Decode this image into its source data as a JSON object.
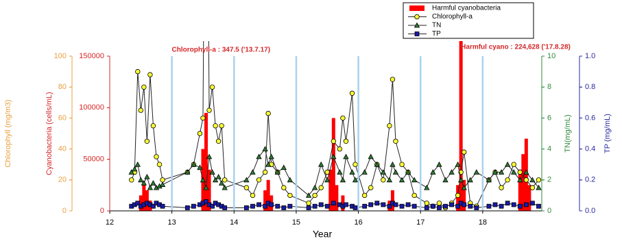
{
  "chart_data": {
    "type": "combo",
    "x_label": "Year",
    "xlim": [
      12,
      18.95
    ],
    "xticks": [
      12,
      13,
      14,
      15,
      16,
      17,
      18
    ],
    "grid": true,
    "grid_color": "#a9d2f0",
    "annotations": [
      {
        "text": "Chlorophyll-a : 347.5 ('13.7.17)",
        "x": 13.55,
        "color": "#d62728"
      },
      {
        "text": "Harmful cyano : 224,628 ('17.8.28)",
        "x": 17.65,
        "color": "#d62728"
      }
    ],
    "axes": [
      {
        "label": "Chlorophyll (mg/m3)",
        "color": "#e8a040",
        "lim": [
          0,
          100
        ],
        "ticks": [
          0,
          20,
          40,
          60,
          80,
          100
        ]
      },
      {
        "label": "Cyanobacteria (cells/mL)",
        "color": "#d62728",
        "lim": [
          0,
          150000
        ],
        "ticks": [
          0,
          50000,
          100000,
          150000
        ]
      },
      {
        "label": "TN(mg/mL)",
        "color": "#2e8b3a",
        "lim": [
          0,
          10
        ],
        "ticks": [
          0,
          2,
          4,
          6,
          8,
          10
        ]
      },
      {
        "label": "TP (mg/mL)",
        "color": "#2a2aa0",
        "lim": [
          0,
          1
        ],
        "ticks": [
          {
            "value": 0,
            "label": "0.0"
          },
          0.2,
          0.4,
          0.6,
          0.8,
          {
            "value": 1,
            "label": "1.0"
          }
        ]
      }
    ],
    "x": [
      12.35,
      12.4,
      12.45,
      12.5,
      12.55,
      12.6,
      12.65,
      12.7,
      12.75,
      12.8,
      12.85,
      13.25,
      13.35,
      13.45,
      13.5,
      13.55,
      13.6,
      13.65,
      13.7,
      13.75,
      13.8,
      13.85,
      14.2,
      14.3,
      14.4,
      14.5,
      14.55,
      14.6,
      14.7,
      14.8,
      14.9,
      15.2,
      15.3,
      15.4,
      15.5,
      15.6,
      15.7,
      15.75,
      15.8,
      15.9,
      15.95,
      16.1,
      16.2,
      16.3,
      16.4,
      16.5,
      16.55,
      16.6,
      16.7,
      16.8,
      16.9,
      17.1,
      17.2,
      17.3,
      17.4,
      17.5,
      17.6,
      17.65,
      17.7,
      17.8,
      17.9,
      18.1,
      18.2,
      18.3,
      18.4,
      18.5,
      18.6,
      18.7,
      18.8,
      18.9
    ],
    "series": [
      {
        "name": "Harmful cyanobacteria",
        "kind": "bar",
        "axis": 1,
        "color": "#ff0000",
        "x": [
          12.5,
          12.55,
          12.6,
          12.65,
          13.5,
          13.55,
          13.6,
          14.5,
          14.55,
          14.6,
          15.55,
          15.6,
          15.65,
          15.75,
          16.5,
          16.55,
          17.6,
          17.65,
          17.7,
          18.6,
          18.65,
          18.7,
          18.75
        ],
        "values": [
          15000,
          25000,
          20000,
          10000,
          60000,
          95000,
          40000,
          20000,
          30000,
          15000,
          40000,
          90000,
          25000,
          15000,
          10000,
          20000,
          25000,
          224628,
          30000,
          40000,
          55000,
          70000,
          25000
        ]
      },
      {
        "name": "Chlorophyll-a",
        "kind": "line",
        "marker": "circle",
        "axis": 0,
        "color": "#ffff33",
        "values": [
          20,
          25,
          90,
          65,
          80,
          45,
          88,
          55,
          35,
          30,
          20,
          25,
          30,
          50,
          60,
          347.5,
          65,
          80,
          55,
          45,
          55,
          20,
          15,
          10,
          20,
          25,
          63,
          30,
          25,
          15,
          10,
          5,
          10,
          15,
          25,
          45,
          40,
          60,
          45,
          76,
          30,
          10,
          15,
          30,
          20,
          55,
          85,
          45,
          30,
          25,
          10,
          5,
          3,
          5,
          2,
          5,
          10,
          25,
          38,
          5,
          3,
          20,
          25,
          15,
          20,
          30,
          25,
          20,
          15,
          20
        ]
      },
      {
        "name": "TN",
        "kind": "line",
        "marker": "triangle",
        "axis": 2,
        "color": "#2e7d32",
        "values": [
          2.5,
          2.7,
          3,
          2,
          1.8,
          2.2,
          1.5,
          1.8,
          1.5,
          1.6,
          1.7,
          2.5,
          3,
          2.8,
          2,
          1.5,
          3.5,
          2.5,
          2,
          2.2,
          1.8,
          1.5,
          2,
          2.5,
          3.5,
          4,
          3,
          3.5,
          2.5,
          2.8,
          2,
          1,
          1.5,
          3,
          2,
          3.5,
          2.5,
          2,
          3.5,
          2.5,
          2,
          2.5,
          3.5,
          3,
          2.5,
          2,
          3,
          2.5,
          2,
          2.5,
          2,
          1.5,
          2.5,
          3,
          2,
          2.5,
          3,
          2,
          1.5,
          2,
          2.5,
          2,
          2.5,
          2.5,
          3,
          2.5,
          2,
          2.5,
          2,
          1.5
        ]
      },
      {
        "name": "TP",
        "kind": "line",
        "marker": "square",
        "axis": 3,
        "color": "#1a1aa8",
        "values": [
          0.03,
          0.04,
          0.05,
          0.03,
          0.04,
          0.05,
          0.04,
          0.03,
          0.05,
          0.04,
          0.03,
          0.02,
          0.03,
          0.04,
          0.05,
          0.06,
          0.04,
          0.03,
          0.05,
          0.04,
          0.03,
          0.02,
          0.02,
          0.03,
          0.04,
          0.03,
          0.05,
          0.04,
          0.03,
          0.02,
          0.03,
          0.02,
          0.03,
          0.04,
          0.03,
          0.05,
          0.04,
          0.03,
          0.04,
          0.03,
          0.02,
          0.03,
          0.04,
          0.05,
          0.04,
          0.03,
          0.05,
          0.04,
          0.03,
          0.04,
          0.03,
          0.02,
          0.03,
          0.02,
          0.03,
          0.04,
          0.03,
          0.05,
          0.04,
          0.03,
          0.02,
          0.03,
          0.04,
          0.03,
          0.05,
          0.04,
          0.03,
          0.04,
          0.05,
          0.03
        ]
      }
    ]
  }
}
